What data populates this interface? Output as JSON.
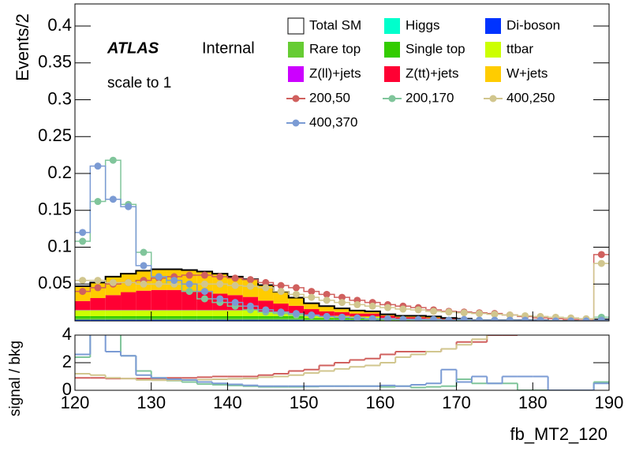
{
  "chart_data": {
    "type": "stacked-histogram",
    "y_label": "Events/2",
    "x_label": "fb_MT2_120",
    "atlas_label": "ATLAS",
    "status_label": "Internal",
    "note": "scale to 1",
    "total_label": "Total SM",
    "bins": [
      120,
      122,
      124,
      126,
      128,
      130,
      132,
      134,
      136,
      138,
      140,
      142,
      144,
      146,
      148,
      150,
      152,
      154,
      156,
      158,
      160,
      162,
      164,
      166,
      168,
      170,
      172,
      174,
      176,
      178,
      180,
      182,
      184,
      186,
      188,
      190
    ],
    "xlim": [
      120,
      190
    ],
    "xticks": [
      120,
      130,
      140,
      150,
      160,
      170,
      180,
      190
    ],
    "ylim": [
      0,
      0.43
    ],
    "yticks": [
      0.05,
      0.1,
      0.15,
      0.2,
      0.25,
      0.3,
      0.35,
      0.4
    ],
    "series": [
      {
        "name": "Higgs",
        "color": "#00ffcc",
        "values": [
          0.0005,
          0.0005,
          0.0005,
          0.0005,
          0.0005,
          0.0005,
          0.0005,
          0.0005,
          0.0005,
          0.0005,
          0.0005,
          0.0005,
          0.0005,
          0.0005,
          0.0005,
          0,
          0,
          0,
          0,
          0,
          0,
          0,
          0,
          0,
          0,
          0,
          0,
          0,
          0,
          0,
          0,
          0,
          0,
          0,
          0
        ]
      },
      {
        "name": "Di-boson",
        "color": "#0033ff",
        "values": [
          0.001,
          0.001,
          0.001,
          0.001,
          0.001,
          0.001,
          0.001,
          0.001,
          0.001,
          0.001,
          0.001,
          0.001,
          0.001,
          0.001,
          0.001,
          0.001,
          0.001,
          0.001,
          0.001,
          0.001,
          0,
          0,
          0,
          0,
          0,
          0,
          0,
          0,
          0,
          0,
          0,
          0,
          0,
          0,
          0
        ]
      },
      {
        "name": "Rare top",
        "color": "#66cc33",
        "values": [
          0.002,
          0.002,
          0.002,
          0.002,
          0.002,
          0.002,
          0.002,
          0.002,
          0.002,
          0.002,
          0.002,
          0.002,
          0.002,
          0.002,
          0.002,
          0.001,
          0.001,
          0.001,
          0.001,
          0.001,
          0.001,
          0.001,
          0.001,
          0.001,
          0.001,
          0,
          0,
          0,
          0,
          0,
          0,
          0,
          0,
          0,
          0
        ]
      },
      {
        "name": "Single top",
        "color": "#33cc00",
        "values": [
          0.003,
          0.003,
          0.003,
          0.003,
          0.003,
          0.003,
          0.003,
          0.003,
          0.003,
          0.003,
          0.003,
          0.003,
          0.003,
          0.003,
          0.003,
          0.002,
          0.002,
          0.002,
          0.002,
          0.002,
          0.002,
          0.001,
          0.001,
          0.001,
          0.001,
          0.001,
          0,
          0,
          0,
          0,
          0,
          0,
          0,
          0,
          0
        ]
      },
      {
        "name": "ttbar",
        "color": "#ccff00",
        "values": [
          0.008,
          0.008,
          0.008,
          0.008,
          0.008,
          0.008,
          0.008,
          0.008,
          0.008,
          0.008,
          0.008,
          0.008,
          0.006,
          0.005,
          0.004,
          0.004,
          0.003,
          0.003,
          0.002,
          0.002,
          0.001,
          0.001,
          0.001,
          0.001,
          0,
          0,
          0,
          0,
          0,
          0,
          0,
          0,
          0,
          0,
          0
        ]
      },
      {
        "name": "Z(ll)+jets",
        "color": "#cc00ff",
        "values": [
          0.0005,
          0.0005,
          0.0005,
          0.0005,
          0.0005,
          0.0005,
          0.0005,
          0.0005,
          0.0005,
          0.0005,
          0.0005,
          0,
          0,
          0,
          0,
          0,
          0,
          0,
          0,
          0,
          0,
          0,
          0,
          0,
          0,
          0,
          0,
          0,
          0,
          0,
          0,
          0,
          0,
          0,
          0
        ]
      },
      {
        "name": "Z(tt)+jets",
        "color": "#ff0033",
        "values": [
          0.012,
          0.016,
          0.02,
          0.024,
          0.026,
          0.027,
          0.027,
          0.026,
          0.024,
          0.022,
          0.02,
          0.018,
          0.015,
          0.012,
          0.01,
          0.008,
          0.006,
          0.005,
          0.004,
          0.004,
          0.003,
          0.002,
          0.002,
          0.001,
          0.001,
          0.001,
          0,
          0,
          0,
          0,
          0,
          0,
          0,
          0,
          0
        ]
      },
      {
        "name": "W+jets",
        "color": "#ffcc00",
        "values": [
          0.02,
          0.021,
          0.025,
          0.025,
          0.027,
          0.028,
          0.028,
          0.028,
          0.028,
          0.027,
          0.025,
          0.024,
          0.021,
          0.016,
          0.011,
          0.008,
          0.007,
          0.005,
          0.004,
          0.003,
          0.002,
          0.002,
          0.002,
          0.002,
          0.001,
          0.001,
          0.001,
          0.001,
          0.001,
          0.001,
          0.001,
          0,
          0,
          0,
          0.002
        ]
      }
    ],
    "signals": [
      {
        "name": "200,50",
        "color": "#d0605e",
        "values": [
          0.04,
          0.045,
          0.05,
          0.052,
          0.055,
          0.058,
          0.06,
          0.062,
          0.062,
          0.06,
          0.058,
          0.056,
          0.052,
          0.048,
          0.045,
          0.04,
          0.036,
          0.032,
          0.028,
          0.025,
          0.022,
          0.02,
          0.018,
          0.015,
          0.013,
          0.012,
          0.011,
          0.01,
          0.008,
          0.006,
          0.004,
          0.003,
          0.002,
          0.001,
          0.09
        ]
      },
      {
        "name": "200,170",
        "color": "#80c59b",
        "values": [
          0.108,
          0.162,
          0.218,
          0.158,
          0.093,
          0.06,
          0.05,
          0.04,
          0.03,
          0.025,
          0.02,
          0.015,
          0.012,
          0.01,
          0.008,
          0.007,
          0.006,
          0.005,
          0.004,
          0.003,
          0.002,
          0.002,
          0.001,
          0.001,
          0.001,
          0.001,
          0.001,
          0.001,
          0.001,
          0,
          0,
          0,
          0,
          0,
          0.005
        ]
      },
      {
        "name": "400,250",
        "color": "#d1c68e",
        "values": [
          0.055,
          0.055,
          0.052,
          0.052,
          0.05,
          0.05,
          0.05,
          0.05,
          0.05,
          0.05,
          0.048,
          0.047,
          0.045,
          0.04,
          0.036,
          0.032,
          0.028,
          0.025,
          0.022,
          0.02,
          0.018,
          0.016,
          0.015,
          0.013,
          0.012,
          0.011,
          0.01,
          0.009,
          0.008,
          0.007,
          0.006,
          0.005,
          0.004,
          0.003,
          0.078
        ]
      },
      {
        "name": "400,370",
        "color": "#7b9bd4",
        "values": [
          0.12,
          0.21,
          0.165,
          0.155,
          0.075,
          0.06,
          0.055,
          0.05,
          0.04,
          0.03,
          0.025,
          0.02,
          0.015,
          0.012,
          0.01,
          0.008,
          0.006,
          0.005,
          0.004,
          0.003,
          0.003,
          0.002,
          0.002,
          0.002,
          0.001,
          0.002,
          0.001,
          0.001,
          0.001,
          0.001,
          0.001,
          0,
          0,
          0,
          0.001
        ]
      }
    ],
    "ratio": {
      "y_label": "signal / bkg",
      "ylim": [
        0,
        4
      ],
      "yticks": [
        0,
        2,
        4
      ],
      "series": [
        {
          "name": "200,50",
          "color": "#d0605e",
          "values": [
            0.9,
            0.9,
            0.85,
            0.85,
            0.85,
            0.85,
            0.9,
            0.9,
            0.95,
            1,
            1,
            1,
            1.1,
            1.2,
            1.4,
            1.5,
            1.8,
            2,
            2.2,
            2.3,
            2.6,
            2.8,
            2.8,
            2.8,
            3,
            3.5,
            3.5,
            4,
            4,
            4.5,
            4.5,
            4.5,
            4.5,
            4.5,
            4.5
          ]
        },
        {
          "name": "200,170",
          "color": "#80c59b",
          "values": [
            2.4,
            4.5,
            4.5,
            2.5,
            1.4,
            0.9,
            0.7,
            0.6,
            0.45,
            0.4,
            0.35,
            0.3,
            0.25,
            0.25,
            0.25,
            0.27,
            0.3,
            0.3,
            0.3,
            0.3,
            0.25,
            0.3,
            0.2,
            0.25,
            0.3,
            0.8,
            0.5,
            0.5,
            0.5,
            0,
            0,
            0,
            0,
            0,
            0.6
          ]
        },
        {
          "name": "400,250",
          "color": "#d1c68e",
          "values": [
            1.2,
            1.1,
            0.9,
            0.85,
            0.75,
            0.73,
            0.73,
            0.75,
            0.77,
            0.8,
            0.83,
            0.85,
            0.95,
            1,
            1.1,
            1.25,
            1.4,
            1.55,
            1.7,
            1.8,
            2,
            2.4,
            2.6,
            2.8,
            3,
            3.3,
            3.7,
            4.5,
            4.5,
            4.5,
            4.5,
            4.5,
            4.5,
            4.5,
            4.5
          ]
        },
        {
          "name": "400,370",
          "color": "#7b9bd4",
          "values": [
            2.6,
            4.2,
            2.8,
            2.5,
            1.1,
            0.9,
            0.8,
            0.75,
            0.6,
            0.5,
            0.43,
            0.36,
            0.3,
            0.3,
            0.3,
            0.3,
            0.3,
            0.3,
            0.3,
            0.3,
            0.35,
            0.3,
            0.4,
            0.5,
            1.5,
            0.6,
            1,
            0.5,
            1,
            1,
            1,
            0,
            0,
            0,
            0.5
          ]
        }
      ]
    }
  }
}
